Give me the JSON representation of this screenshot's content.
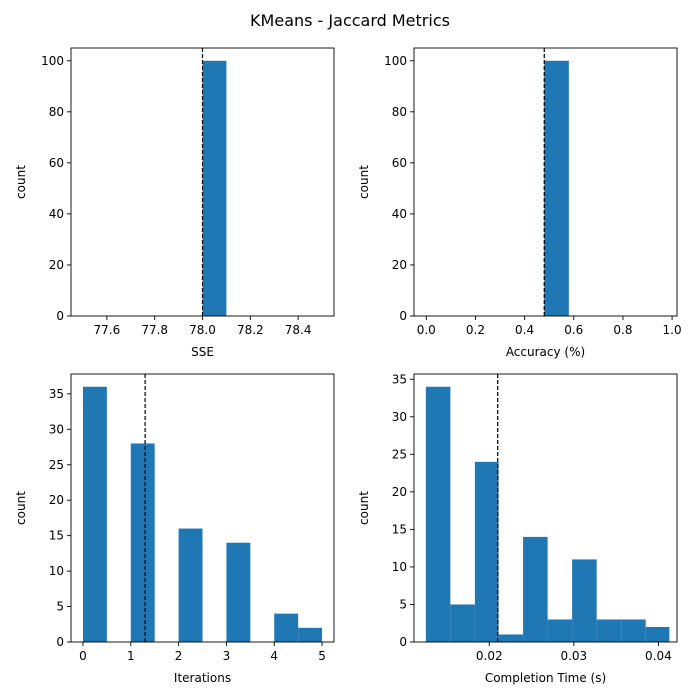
{
  "figure": {
    "title": "KMeans - Jaccard Metrics",
    "bar_color": "#1f77b4",
    "mean_line_color": "#000000"
  },
  "chart_data": [
    {
      "type": "bar",
      "name": "sse-histogram",
      "xlabel": "SSE",
      "ylabel": "count",
      "xlim": [
        77.45,
        78.55
      ],
      "ylim": [
        0,
        105
      ],
      "xticks": [
        77.6,
        77.8,
        78.0,
        78.2,
        78.4
      ],
      "xtick_labels": [
        "77.6",
        "77.8",
        "78.0",
        "78.2",
        "78.4"
      ],
      "yticks": [
        0,
        20,
        40,
        60,
        80,
        100
      ],
      "bins": [
        [
          78.0,
          78.1
        ]
      ],
      "values": [
        100
      ],
      "mean_line": 78.0,
      "grid": false
    },
    {
      "type": "bar",
      "name": "accuracy-histogram",
      "xlabel": "Accuracy (%)",
      "ylabel": "count",
      "xlim": [
        -0.05,
        1.02
      ],
      "ylim": [
        0,
        105
      ],
      "xticks": [
        0.0,
        0.2,
        0.4,
        0.6,
        0.8,
        1.0
      ],
      "xtick_labels": [
        "0.0",
        "0.2",
        "0.4",
        "0.6",
        "0.8",
        "1.0"
      ],
      "yticks": [
        0,
        20,
        40,
        60,
        80,
        100
      ],
      "bins": [
        [
          0.48,
          0.58
        ]
      ],
      "values": [
        100
      ],
      "mean_line": 0.48,
      "grid": false
    },
    {
      "type": "bar",
      "name": "iterations-histogram",
      "xlabel": "Iterations",
      "ylabel": "count",
      "xlim": [
        -0.25,
        5.25
      ],
      "ylim": [
        0,
        37.8
      ],
      "xticks": [
        0,
        1,
        2,
        3,
        4,
        5
      ],
      "xtick_labels": [
        "0",
        "1",
        "2",
        "3",
        "4",
        "5"
      ],
      "yticks": [
        0,
        5,
        10,
        15,
        20,
        25,
        30,
        35
      ],
      "bins": [
        [
          0,
          0.5
        ],
        [
          1,
          1.5
        ],
        [
          2,
          2.5
        ],
        [
          3,
          3.5
        ],
        [
          4,
          4.5
        ],
        [
          4.5,
          5
        ]
      ],
      "values": [
        36,
        28,
        16,
        14,
        4,
        2
      ],
      "mean_line": 1.3,
      "grid": false
    },
    {
      "type": "bar",
      "name": "completion-time-histogram",
      "xlabel": "Completion Time (s)",
      "ylabel": "count",
      "xlim": [
        0.0111,
        0.0422
      ],
      "ylim": [
        0,
        35.7
      ],
      "xticks": [
        0.02,
        0.03,
        0.04
      ],
      "xtick_labels": [
        "0.02",
        "0.03",
        "0.04"
      ],
      "yticks": [
        0,
        5,
        10,
        15,
        20,
        25,
        30,
        35
      ],
      "bins": [
        [
          0.0125,
          0.0154
        ],
        [
          0.0154,
          0.0183
        ],
        [
          0.0183,
          0.0211
        ],
        [
          0.0211,
          0.024
        ],
        [
          0.024,
          0.0269
        ],
        [
          0.0269,
          0.0298
        ],
        [
          0.0298,
          0.0327
        ],
        [
          0.0327,
          0.0356
        ],
        [
          0.0356,
          0.0385
        ],
        [
          0.0385,
          0.0413
        ]
      ],
      "values": [
        34,
        5,
        24,
        1,
        14,
        3,
        11,
        3,
        3,
        2
      ],
      "mean_line": 0.021,
      "grid": false
    }
  ]
}
